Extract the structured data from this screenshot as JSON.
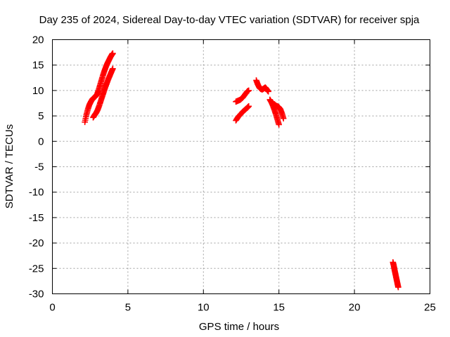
{
  "chart_data": {
    "type": "scatter",
    "title": "Day 235 of 2024, Sidereal Day-to-day VTEC variation (SDTVAR) for receiver spja",
    "xlabel": "GPS time / hours",
    "ylabel": "SDTVAR / TECUs",
    "xlim": [
      0,
      25
    ],
    "ylim": [
      -30,
      20
    ],
    "xticks": [
      0,
      5,
      10,
      15,
      20,
      25
    ],
    "yticks": [
      -30,
      -25,
      -20,
      -15,
      -10,
      -5,
      0,
      5,
      10,
      15,
      20
    ],
    "grid": true,
    "legend": "none",
    "marker": "plus",
    "color": "#ff0000",
    "series": [
      {
        "x": [
          2.15,
          2.25,
          2.35,
          2.45,
          2.55,
          2.65,
          2.75,
          2.85,
          2.95,
          3.05,
          3.15,
          3.25,
          3.35,
          3.45,
          3.55,
          3.65,
          3.75,
          3.85,
          3.95,
          4.0
        ],
        "y": [
          3.8,
          5.2,
          6.3,
          7.2,
          7.8,
          8.3,
          8.6,
          8.8,
          9.2,
          10.0,
          11.0,
          12.0,
          13.0,
          13.9,
          14.7,
          15.4,
          16.0,
          16.6,
          17.1,
          17.3
        ]
      },
      {
        "x": [
          2.7,
          2.8,
          2.9,
          3.0,
          3.1,
          3.2,
          3.3,
          3.4,
          3.5,
          3.6,
          3.7,
          3.8,
          3.9,
          4.0
        ],
        "y": [
          4.7,
          5.2,
          5.6,
          6.2,
          7.0,
          7.9,
          8.8,
          9.7,
          10.6,
          11.4,
          12.2,
          12.9,
          13.6,
          14.3
        ]
      },
      {
        "x": [
          12.15,
          12.3,
          12.45,
          12.6,
          12.75,
          12.9,
          13.0
        ],
        "y": [
          7.8,
          8.0,
          8.2,
          8.6,
          9.2,
          9.8,
          10.0
        ]
      },
      {
        "x": [
          12.15,
          12.3,
          12.45,
          12.6,
          12.75,
          12.9,
          13.0
        ],
        "y": [
          4.1,
          4.8,
          5.3,
          5.8,
          6.2,
          6.6,
          6.9
        ]
      },
      {
        "x": [
          13.5,
          13.6,
          13.7,
          13.8,
          13.9,
          14.0,
          14.1,
          14.2,
          14.3
        ],
        "y": [
          12.0,
          11.2,
          10.6,
          10.3,
          10.2,
          10.4,
          10.6,
          10.2,
          9.8
        ]
      },
      {
        "x": [
          14.4,
          14.5,
          14.6,
          14.7,
          14.8,
          14.9,
          15.0
        ],
        "y": [
          8.2,
          7.7,
          7.0,
          6.2,
          5.3,
          4.3,
          3.3
        ]
      },
      {
        "x": [
          14.7,
          14.8,
          14.9,
          15.0,
          15.1,
          15.2,
          15.3
        ],
        "y": [
          7.3,
          7.0,
          6.9,
          6.7,
          6.3,
          5.5,
          4.5
        ]
      },
      {
        "x": [
          22.55,
          22.6,
          22.65,
          22.7,
          22.75,
          22.8,
          22.85,
          22.9
        ],
        "y": [
          -23.8,
          -24.4,
          -25.2,
          -25.9,
          -26.6,
          -27.3,
          -28.0,
          -28.7
        ]
      }
    ]
  }
}
